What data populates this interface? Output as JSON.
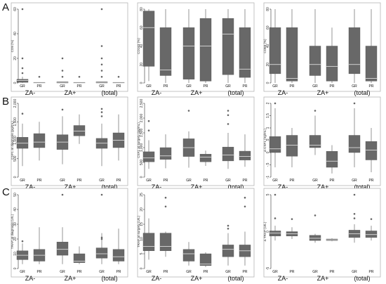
{
  "figure": {
    "row_letters": [
      "A",
      "B",
      "C"
    ],
    "group_labels": [
      "ZA-",
      "ZA+",
      "(total)"
    ],
    "category_labels": [
      "GR",
      "PR",
      "GR",
      "PR",
      "GR",
      "PR"
    ]
  },
  "chart_data": [
    {
      "type": "box",
      "ylabel": "CD8 (%)",
      "ylim": [
        0,
        60
      ],
      "yticks": [
        0,
        20,
        40,
        60
      ],
      "ytick_labels": [
        "0",
        "20",
        "40",
        "60"
      ],
      "categories": [
        "GR",
        "PR",
        "GR",
        "PR",
        "GR",
        "PR"
      ],
      "boxes": [
        {
          "min": 0,
          "q1": 0.5,
          "median": 2,
          "q3": 3,
          "max": 5,
          "outliers": [
            8,
            12,
            20,
            60
          ]
        },
        {
          "min": 0,
          "q1": 0,
          "median": 0,
          "q3": 0.5,
          "max": 0.5,
          "outliers": [
            5
          ]
        },
        {
          "min": 0,
          "q1": 0,
          "median": 0.5,
          "q3": 1,
          "max": 1,
          "outliers": [
            5,
            10,
            20
          ]
        },
        {
          "min": 0,
          "q1": 0,
          "median": 0,
          "q3": 0.5,
          "max": 0.5,
          "outliers": [
            5
          ]
        },
        {
          "min": 0,
          "q1": 0,
          "median": 0.5,
          "q3": 1,
          "max": 1,
          "outliers": [
            5,
            10,
            15,
            20,
            30,
            60
          ]
        },
        {
          "min": 0,
          "q1": 0,
          "median": 0,
          "q3": 0.5,
          "max": 0.5,
          "outliers": [
            5
          ]
        }
      ]
    },
    {
      "type": "box",
      "ylabel": "CD163 (%)",
      "ylim": [
        0,
        80
      ],
      "yticks": [
        0,
        20,
        40,
        60,
        80
      ],
      "ytick_labels": [
        "0",
        "20",
        "40",
        "60",
        "80"
      ],
      "categories": [
        "GR",
        "PR",
        "GR",
        "PR",
        "GR",
        "PR"
      ],
      "boxes": [
        {
          "min": 2,
          "q1": 18,
          "median": 60,
          "q3": 78,
          "max": 80,
          "outliers": []
        },
        {
          "min": 0,
          "q1": 8,
          "median": 14,
          "q3": 60,
          "max": 80,
          "outliers": []
        },
        {
          "min": 0,
          "q1": 4,
          "median": 40,
          "q3": 60,
          "max": 80,
          "outliers": []
        },
        {
          "min": 0,
          "q1": 2,
          "median": 40,
          "q3": 70,
          "max": 80,
          "outliers": []
        },
        {
          "min": 0,
          "q1": 9,
          "median": 53,
          "q3": 70,
          "max": 80,
          "outliers": []
        },
        {
          "min": 0,
          "q1": 6,
          "median": 15,
          "q3": 60,
          "max": 80,
          "outliers": []
        }
      ]
    },
    {
      "type": "box",
      "ylabel": "CD68 (%)",
      "ylim": [
        0,
        80
      ],
      "yticks": [
        0,
        20,
        40,
        60,
        80
      ],
      "ytick_labels": [
        "0",
        "20",
        "40",
        "60",
        "80"
      ],
      "categories": [
        "GR",
        "PR",
        "GR",
        "PR",
        "GR",
        "PR"
      ],
      "boxes": [
        {
          "min": 0,
          "q1": 10,
          "median": 20,
          "q3": 60,
          "max": 80,
          "outliers": []
        },
        {
          "min": 0,
          "q1": 2,
          "median": 5,
          "q3": 60,
          "max": 80,
          "outliers": []
        },
        {
          "min": 0,
          "q1": 8,
          "median": 20,
          "q3": 40,
          "max": 80,
          "outliers": []
        },
        {
          "min": 0,
          "q1": 2,
          "median": 18,
          "q3": 40,
          "max": 60,
          "outliers": []
        },
        {
          "min": 0,
          "q1": 10,
          "median": 20,
          "q3": 60,
          "max": 80,
          "outliers": []
        },
        {
          "min": 0,
          "q1": 2,
          "median": 5,
          "q3": 40,
          "max": 80,
          "outliers": []
        }
      ]
    },
    {
      "type": "box",
      "ylabel": "CSF1 at diagnosis (pg/mL)",
      "ylim": [
        0,
        2000
      ],
      "yticks": [
        0,
        500,
        1000,
        1500,
        2000
      ],
      "ytick_labels": [
        "0",
        "500",
        "1,000",
        "1,500",
        "2,000"
      ],
      "categories": [
        "GR",
        "PR",
        "GR",
        "PR",
        "GR",
        "PR"
      ],
      "boxes": [
        {
          "min": 300,
          "q1": 780,
          "median": 920,
          "q3": 1080,
          "max": 1450,
          "outliers": [
            1720
          ]
        },
        {
          "min": 450,
          "q1": 800,
          "median": 950,
          "q3": 1180,
          "max": 1500,
          "outliers": []
        },
        {
          "min": 350,
          "q1": 750,
          "median": 950,
          "q3": 1150,
          "max": 1650,
          "outliers": [
            1830
          ]
        },
        {
          "min": 900,
          "q1": 1120,
          "median": 1250,
          "q3": 1400,
          "max": 1700,
          "outliers": []
        },
        {
          "min": 300,
          "q1": 780,
          "median": 920,
          "q3": 1050,
          "max": 1450,
          "outliers": [
            1650,
            1760,
            1850
          ]
        },
        {
          "min": 450,
          "q1": 800,
          "median": 1000,
          "q3": 1200,
          "max": 1700,
          "outliers": []
        }
      ]
    },
    {
      "type": "box",
      "ylabel": "CSF1 at surgery (pg/mL)",
      "ylim": [
        0,
        2500
      ],
      "yticks": [
        0,
        500,
        1000,
        1500,
        2000,
        2500
      ],
      "ytick_labels": [
        "0",
        "500",
        "1,000",
        "1,500",
        "2,000",
        "2,500"
      ],
      "categories": [
        "GR",
        "PR",
        "GR",
        "PR",
        "GR",
        "PR"
      ],
      "boxes": [
        {
          "min": 280,
          "q1": 520,
          "median": 650,
          "q3": 860,
          "max": 1250,
          "outliers": [
            1580,
            1900
          ]
        },
        {
          "min": 300,
          "q1": 600,
          "median": 720,
          "q3": 1000,
          "max": 1450,
          "outliers": []
        },
        {
          "min": 320,
          "q1": 700,
          "median": 1000,
          "q3": 1300,
          "max": 1550,
          "outliers": [
            2250
          ]
        },
        {
          "min": 380,
          "q1": 520,
          "median": 680,
          "q3": 780,
          "max": 900,
          "outliers": []
        },
        {
          "min": 280,
          "q1": 550,
          "median": 750,
          "q3": 1020,
          "max": 1500,
          "outliers": [
            1800,
            2100,
            2250
          ]
        },
        {
          "min": 350,
          "q1": 580,
          "median": 700,
          "q3": 880,
          "max": 1450,
          "outliers": []
        }
      ]
    },
    {
      "type": "box",
      "ylabel": "Δ CSF1 (ng/mL)",
      "ylim": [
        -1,
        2
      ],
      "yticks": [
        -1,
        -0.5,
        0,
        0.5,
        1,
        1.5,
        2
      ],
      "ytick_labels": [
        "-1",
        "-.5",
        "0",
        ".5",
        "1",
        "1.5",
        "2"
      ],
      "categories": [
        "GR",
        "PR",
        "GR",
        "PR",
        "GR",
        "PR"
      ],
      "boxes": [
        {
          "min": -0.6,
          "q1": 0,
          "median": 0.15,
          "q3": 0.65,
          "max": 1.8,
          "outliers": [
            2
          ]
        },
        {
          "min": -0.6,
          "q1": -0.15,
          "median": 0.3,
          "q3": 0.7,
          "max": 1.0,
          "outliers": []
        },
        {
          "min": -0.1,
          "q1": 0.2,
          "median": 0.3,
          "q3": 0.7,
          "max": 1.5,
          "outliers": [
            1.7
          ]
        },
        {
          "min": -0.85,
          "q1": -0.6,
          "median": -0.35,
          "q3": 0.05,
          "max": 0.3,
          "outliers": []
        },
        {
          "min": -0.6,
          "q1": 0,
          "median": 0.2,
          "q3": 0.7,
          "max": 1.8,
          "outliers": [
            2
          ]
        },
        {
          "min": -0.8,
          "q1": -0.3,
          "median": 0.1,
          "q3": 0.45,
          "max": 1.0,
          "outliers": []
        }
      ]
    },
    {
      "type": "box",
      "ylabel": "TRAP at diagnosis (U/L)",
      "ylim": [
        0,
        50
      ],
      "yticks": [
        0,
        10,
        20,
        30,
        40,
        50
      ],
      "ytick_labels": [
        "0",
        "10",
        "20",
        "30",
        "40",
        "50"
      ],
      "categories": [
        "GR",
        "PR",
        "GR",
        "PR",
        "GR",
        "PR"
      ],
      "boxes": [
        {
          "min": 3,
          "q1": 6,
          "median": 9,
          "q3": 12,
          "max": 17,
          "outliers": [
            18.5
          ]
        },
        {
          "min": 3,
          "q1": 5,
          "median": 9,
          "q3": 13,
          "max": 28,
          "outliers": []
        },
        {
          "min": 3,
          "q1": 9,
          "median": 13,
          "q3": 18,
          "max": 28,
          "outliers": [
            50
          ]
        },
        {
          "min": 3,
          "q1": 4,
          "median": 5,
          "q3": 10,
          "max": 15,
          "outliers": []
        },
        {
          "min": 3,
          "q1": 7,
          "median": 10,
          "q3": 14,
          "max": 24,
          "outliers": [
            20,
            21,
            50
          ]
        },
        {
          "min": 3,
          "q1": 5,
          "median": 8,
          "q3": 13,
          "max": 27,
          "outliers": []
        }
      ]
    },
    {
      "type": "box",
      "ylabel": "TRAP at surgery (U/L)",
      "ylim": [
        0,
        25
      ],
      "yticks": [
        0,
        5,
        10,
        15,
        20,
        25
      ],
      "ytick_labels": [
        "0",
        "5",
        "10",
        "15",
        "20",
        "25"
      ],
      "categories": [
        "GR",
        "PR",
        "GR",
        "PR",
        "GR",
        "PR"
      ],
      "boxes": [
        {
          "min": 3,
          "q1": 6,
          "median": 7.5,
          "q3": 12,
          "max": 17,
          "outliers": []
        },
        {
          "min": 4,
          "q1": 6,
          "median": 7.5,
          "q3": 12,
          "max": 12.5,
          "outliers": [
            21,
            24
          ]
        },
        {
          "min": 1,
          "q1": 2.5,
          "median": 5,
          "q3": 6.5,
          "max": 9,
          "outliers": []
        },
        {
          "min": 0.5,
          "q1": 1,
          "median": 1.5,
          "q3": 5,
          "max": 5.5,
          "outliers": []
        },
        {
          "min": 1,
          "q1": 4,
          "median": 6.5,
          "q3": 8,
          "max": 12,
          "outliers": [
            13.5,
            14.5
          ]
        },
        {
          "min": 1,
          "q1": 4,
          "median": 6,
          "q3": 8,
          "max": 12.5,
          "outliers": [
            21,
            24
          ]
        }
      ]
    },
    {
      "type": "box",
      "ylabel": "Δ TRAP (U/L)",
      "ylim": [
        -5,
        5
      ],
      "yticks": [
        -5,
        0,
        5
      ],
      "ytick_labels": [
        "-5",
        "0",
        "5"
      ],
      "categories": [
        "GR",
        "PR",
        "GR",
        "PR",
        "GR",
        "PR"
      ],
      "boxes": [
        {
          "min": -1.2,
          "q1": -0.6,
          "median": -0.2,
          "q3": 0.1,
          "max": 0.8,
          "outliers": [
            1.8,
            5
          ]
        },
        {
          "min": -1,
          "q1": -0.6,
          "median": -0.3,
          "q3": 0,
          "max": 0.6,
          "outliers": [
            1.7
          ]
        },
        {
          "min": -1.5,
          "q1": -1.2,
          "median": -0.9,
          "q3": -0.5,
          "max": -0.3,
          "outliers": [
            2.2
          ]
        },
        {
          "min": -1.3,
          "q1": -1.2,
          "median": -1.1,
          "q3": -1.0,
          "max": -0.9,
          "outliers": []
        },
        {
          "min": -1.5,
          "q1": -0.8,
          "median": -0.3,
          "q3": 0.2,
          "max": 1.0,
          "outliers": [
            1.8,
            2.4,
            5
          ]
        },
        {
          "min": -1.2,
          "q1": -0.8,
          "median": -0.4,
          "q3": 0.1,
          "max": 0.8,
          "outliers": [
            1.7
          ]
        }
      ]
    }
  ]
}
